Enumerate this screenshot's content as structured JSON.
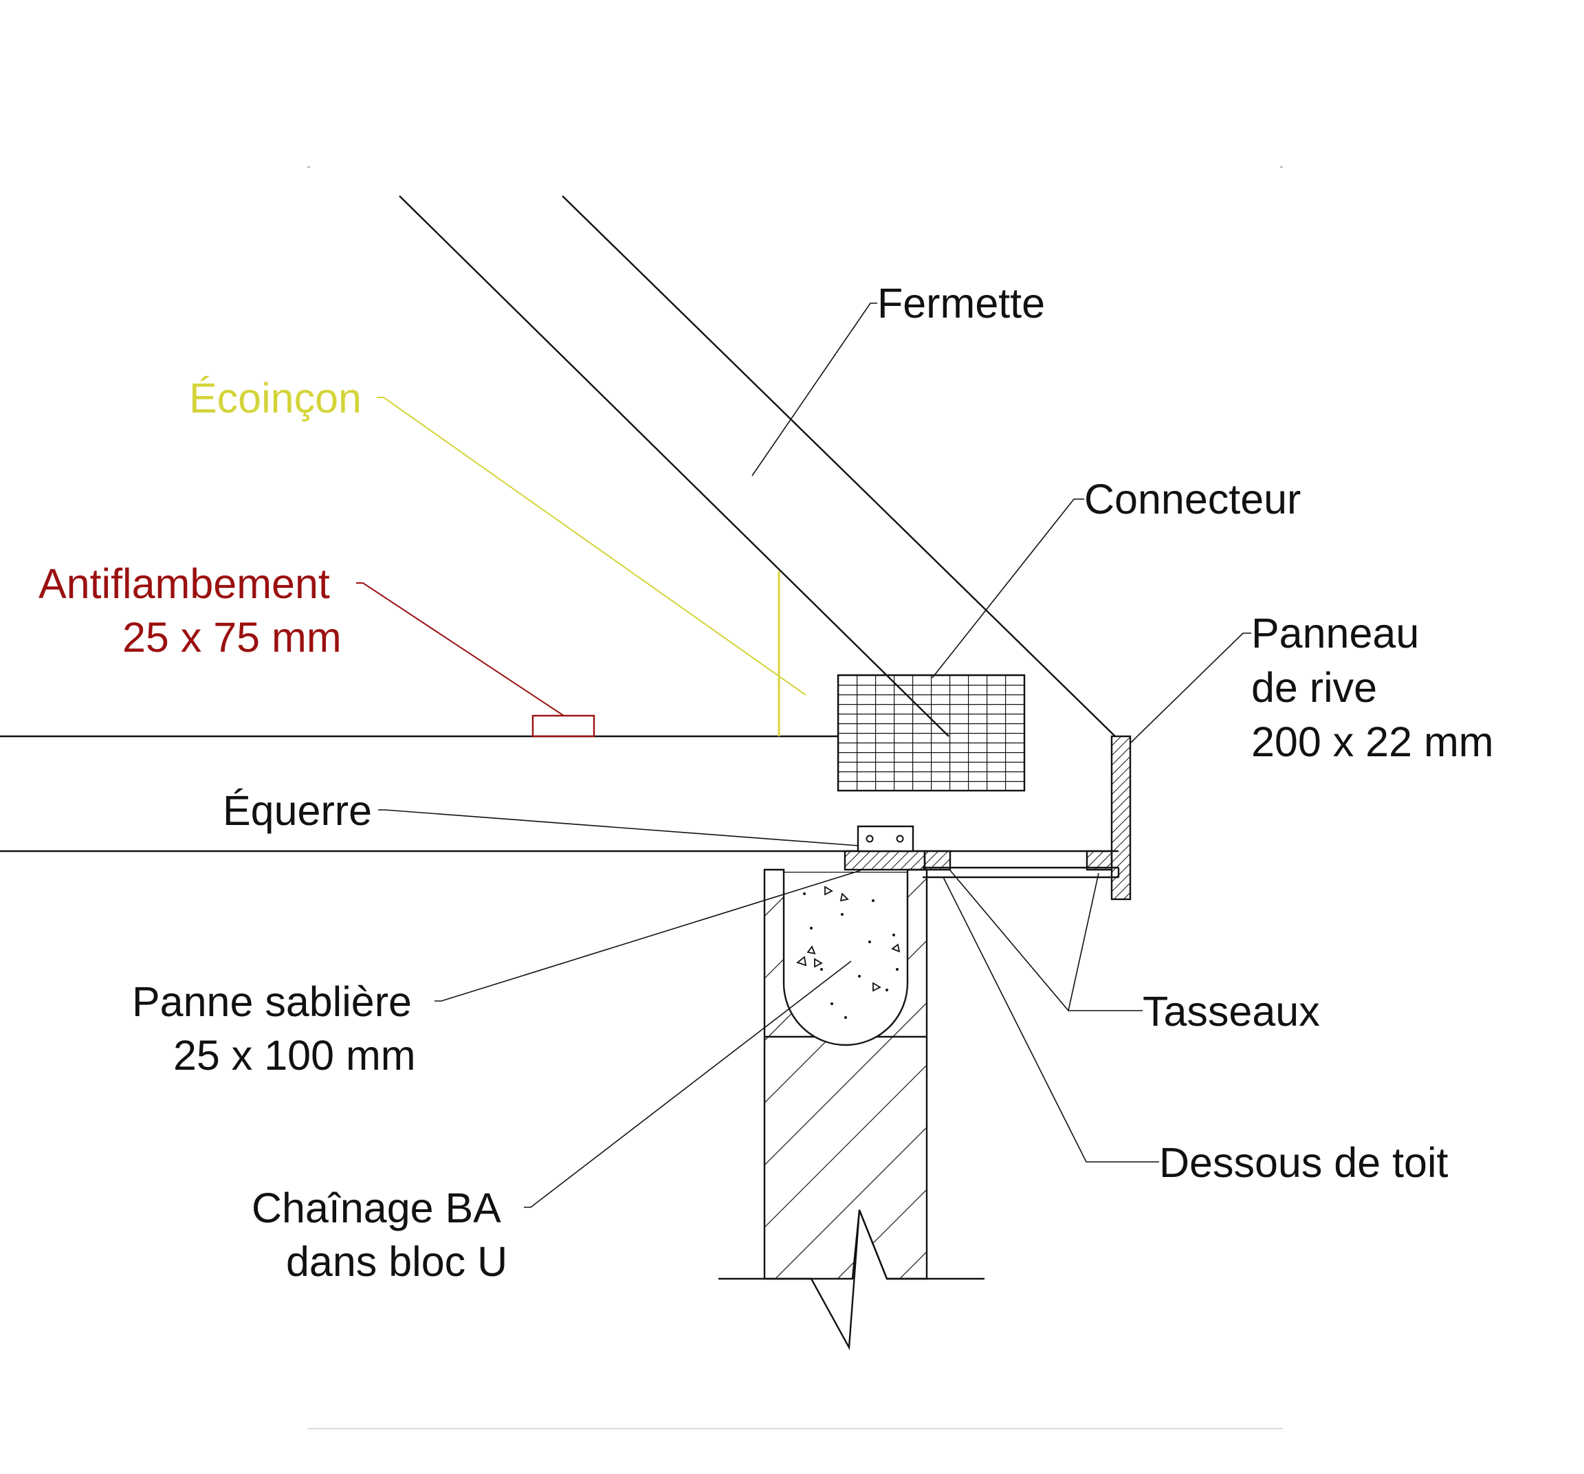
{
  "labels": {
    "fermette": "Fermette",
    "ecoincon": "Écoinçon",
    "connecteur": "Connecteur",
    "antiflambement_1": "Antiflambement",
    "antiflambement_2": "25 x 75 mm",
    "panneau_1": "Panneau",
    "panneau_2": "de rive",
    "panneau_3": "200 x 22 mm",
    "equerre": "Équerre",
    "panne_1": "Panne sablière",
    "panne_2": "25 x 100 mm",
    "tasseaux": "Tasseaux",
    "dessous": "Dessous de toit",
    "chainage_1": "Chaînage BA",
    "chainage_2": "dans bloc U"
  },
  "colors": {
    "ecoincon": "#d4d43a",
    "antiflambement": "#9b1010",
    "line": "#111111"
  }
}
